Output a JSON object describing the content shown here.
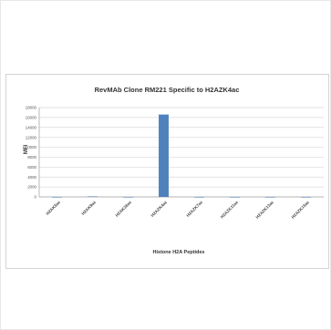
{
  "chart_data": {
    "type": "bar",
    "title": "RevMAb Clone RM221 Specific to H2AZK4ac",
    "xlabel": "Histone H2A Peptides",
    "ylabel": "MFI",
    "categories": [
      "H2AK5ac",
      "H2AK9ac",
      "H2AK36ac",
      "H2AZK4ac",
      "H2AZK7ac",
      "H2AZK11ac",
      "H2AZK13ac",
      "H2AZK15ac"
    ],
    "values": [
      0,
      100,
      0,
      16600,
      0,
      0,
      0,
      0
    ],
    "ylim": [
      0,
      18000
    ],
    "yticks": [
      "18000",
      "16000",
      "14000",
      "12000",
      "10000",
      "8000",
      "6000",
      "4000",
      "2000",
      "0"
    ],
    "grid": true,
    "legend": "none",
    "bar_color": "#4f81bd"
  }
}
